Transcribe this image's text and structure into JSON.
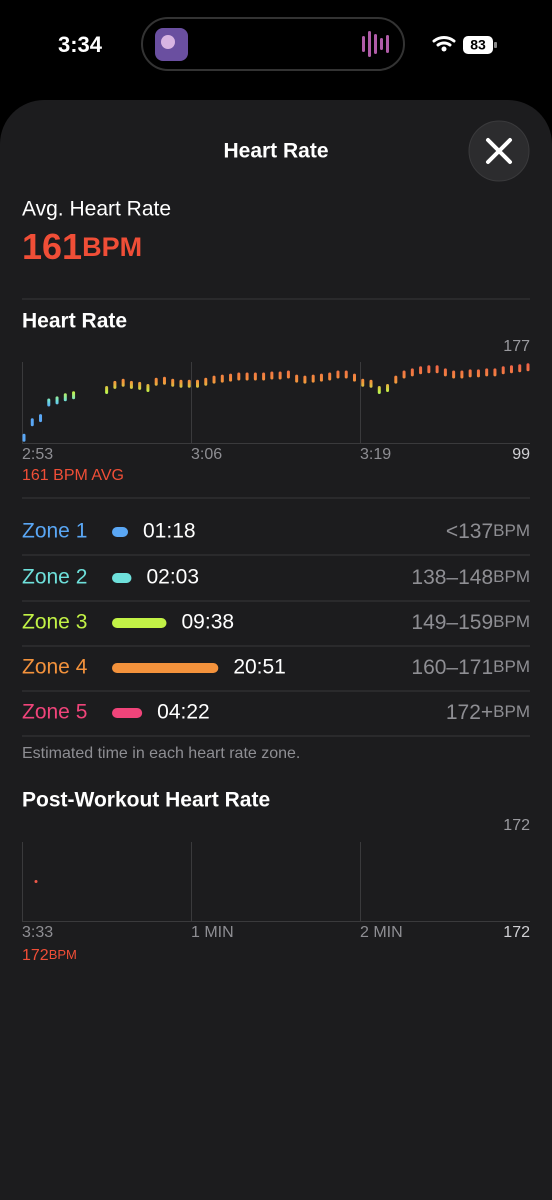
{
  "status_bar": {
    "time": "3:34",
    "battery": "83"
  },
  "header": {
    "title": "Heart Rate"
  },
  "summary": {
    "label": "Avg. Heart Rate",
    "value": "161",
    "unit": "BPM"
  },
  "heart_rate_chart": {
    "title": "Heart Rate",
    "max": 177,
    "min": 99,
    "x_labels": [
      "2:53",
      "3:06",
      "3:19"
    ],
    "avg_label": "161 BPM AVG",
    "values": [
      104,
      119,
      123,
      138,
      140,
      143,
      145,
      null,
      null,
      null,
      150,
      155,
      157,
      155,
      154,
      152,
      158,
      159,
      157,
      156,
      156,
      156,
      158,
      160,
      161,
      162,
      163,
      163,
      163,
      163,
      164,
      164,
      165,
      161,
      160,
      161,
      162,
      163,
      165,
      165,
      162,
      157,
      156,
      150,
      152,
      160,
      165,
      167,
      169,
      170,
      170,
      167,
      165,
      165,
      166,
      166,
      167,
      167,
      169,
      170,
      171,
      172
    ]
  },
  "zones": [
    {
      "name": "Zone 1",
      "color": "#5aa7f5",
      "duration": "01:18",
      "range": "<137",
      "unit": "BPM"
    },
    {
      "name": "Zone 2",
      "color": "#6ee0db",
      "duration": "02:03",
      "range": "138–148",
      "unit": "BPM"
    },
    {
      "name": "Zone 3",
      "color": "#c2f246",
      "duration": "09:38",
      "range": "149–159",
      "unit": "BPM"
    },
    {
      "name": "Zone 4",
      "color": "#f3923c",
      "duration": "20:51",
      "range": "160–171",
      "unit": "BPM"
    },
    {
      "name": "Zone 5",
      "color": "#f0447a",
      "duration": "04:22",
      "range": "172+",
      "unit": "BPM"
    }
  ],
  "zones_note": "Estimated time in each heart rate zone.",
  "post_workout_chart": {
    "title": "Post-Workout Heart Rate",
    "max": 172,
    "min": 172,
    "x_labels": [
      "3:33",
      "1 MIN",
      "2 MIN"
    ],
    "values": [
      172
    ],
    "value_label": "172",
    "unit": "BPM"
  }
}
